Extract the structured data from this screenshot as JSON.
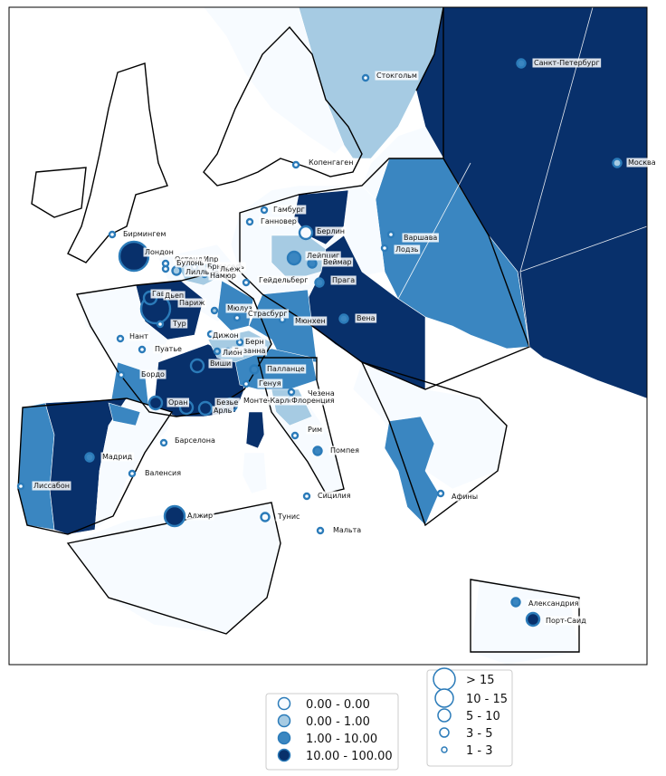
{
  "colors": {
    "c0": "#f7fbff",
    "c1": "#a6cbe3",
    "c2": "#3a86c1",
    "c3": "#08306b",
    "stroke": "#2b7bb9",
    "sea": "#ffffff"
  },
  "cities": [
    {
      "name": "Санкт-Петербург",
      "cls": 2,
      "size": 2
    },
    {
      "name": "Стокгольм",
      "cls": 0,
      "size": 1
    },
    {
      "name": "Москва",
      "cls": 1,
      "size": 2
    },
    {
      "name": "Копенгаген",
      "cls": 0,
      "size": 1
    },
    {
      "name": "Гамбург",
      "cls": 0,
      "size": 1
    },
    {
      "name": "Ганновер",
      "cls": 0,
      "size": 1
    },
    {
      "name": "Берлин",
      "cls": 0,
      "size": 3
    },
    {
      "name": "Бирмингем",
      "cls": 0,
      "size": 1
    },
    {
      "name": "Лондон",
      "cls": 3,
      "size": 5
    },
    {
      "name": "Варшава",
      "cls": 0,
      "size": 1
    },
    {
      "name": "Лодзь",
      "cls": 0,
      "size": 1
    },
    {
      "name": "Лейпциг",
      "cls": 2,
      "size": 3
    },
    {
      "name": "Веймар",
      "cls": 2,
      "size": 2
    },
    {
      "name": "Остенде",
      "cls": 0,
      "size": 1
    },
    {
      "name": "Ипр",
      "cls": 0,
      "size": 1
    },
    {
      "name": "Брюссель",
      "cls": 0,
      "size": 1
    },
    {
      "name": "Булонь",
      "cls": 0,
      "size": 1
    },
    {
      "name": "Льеж",
      "cls": 0,
      "size": 1
    },
    {
      "name": "Лилль",
      "cls": 1,
      "size": 2
    },
    {
      "name": "Намюр",
      "cls": 0,
      "size": 1
    },
    {
      "name": "Гейдельберг",
      "cls": 0,
      "size": 1
    },
    {
      "name": "Прага",
      "cls": 2,
      "size": 2
    },
    {
      "name": "Гавр",
      "cls": 3,
      "size": 3
    },
    {
      "name": "Дьеп",
      "cls": 0,
      "size": 1
    },
    {
      "name": "Париж",
      "cls": 3,
      "size": 5
    },
    {
      "name": "Мюлуз",
      "cls": 1,
      "size": 1
    },
    {
      "name": "Страсбург",
      "cls": 0,
      "size": 1
    },
    {
      "name": "Вена",
      "cls": 2,
      "size": 2
    },
    {
      "name": "Тур",
      "cls": 0,
      "size": 1
    },
    {
      "name": "Нант",
      "cls": 0,
      "size": 1
    },
    {
      "name": "Мюнхен",
      "cls": 0,
      "size": 1
    },
    {
      "name": "Дижон",
      "cls": 0,
      "size": 1
    },
    {
      "name": "Пуатье",
      "cls": 0,
      "size": 1
    },
    {
      "name": "Берн",
      "cls": 0,
      "size": 1
    },
    {
      "name": "Лозанна",
      "cls": 0,
      "size": 1
    },
    {
      "name": "Лион",
      "cls": 1,
      "size": 1
    },
    {
      "name": "Виши",
      "cls": 3,
      "size": 3
    },
    {
      "name": "Палланце",
      "cls": 2,
      "size": 2
    },
    {
      "name": "Бордо",
      "cls": 0,
      "size": 1
    },
    {
      "name": "Генуя",
      "cls": 0,
      "size": 1
    },
    {
      "name": "Монте-Карло",
      "cls": 3,
      "size": 3
    },
    {
      "name": "Безье",
      "cls": 3,
      "size": 3
    },
    {
      "name": "Оран",
      "cls": 3,
      "size": 3
    },
    {
      "name": "Арль",
      "cls": 3,
      "size": 3
    },
    {
      "name": "Флоренция",
      "cls": 0,
      "size": 1
    },
    {
      "name": "Чезена",
      "cls": 0,
      "size": 1
    },
    {
      "name": "Рим",
      "cls": 0,
      "size": 1
    },
    {
      "name": "Помпея",
      "cls": 2,
      "size": 2
    },
    {
      "name": "Мадрид",
      "cls": 2,
      "size": 2
    },
    {
      "name": "Барселона",
      "cls": 0,
      "size": 1
    },
    {
      "name": "Валенсия",
      "cls": 0,
      "size": 1
    },
    {
      "name": "Лиссабон",
      "cls": 0,
      "size": 1
    },
    {
      "name": "Афины",
      "cls": 0,
      "size": 1
    },
    {
      "name": "Сицилия",
      "cls": 0,
      "size": 1
    },
    {
      "name": "Алжир",
      "cls": 3,
      "size": 4
    },
    {
      "name": "Тунис",
      "cls": 0,
      "size": 2
    },
    {
      "name": "Мальта",
      "cls": 0,
      "size": 1
    },
    {
      "name": "Александрия",
      "cls": 2,
      "size": 2
    },
    {
      "name": "Порт-Саид",
      "cls": 3,
      "size": 3
    }
  ],
  "legend_colors": {
    "items": [
      {
        "label": "0.00 - 0.00",
        "cls": 0
      },
      {
        "label": "0.00 - 1.00",
        "cls": 1
      },
      {
        "label": "1.00 - 10.00",
        "cls": 2
      },
      {
        "label": "10.00 - 100.00",
        "cls": 3
      }
    ]
  },
  "legend_sizes": {
    "items": [
      {
        "label": "> 15",
        "size": 5
      },
      {
        "label": "10 - 15",
        "size": 4
      },
      {
        "label": "5 - 10",
        "size": 3
      },
      {
        "label": "3 - 5",
        "size": 2
      },
      {
        "label": "1 - 3",
        "size": 1
      }
    ]
  }
}
